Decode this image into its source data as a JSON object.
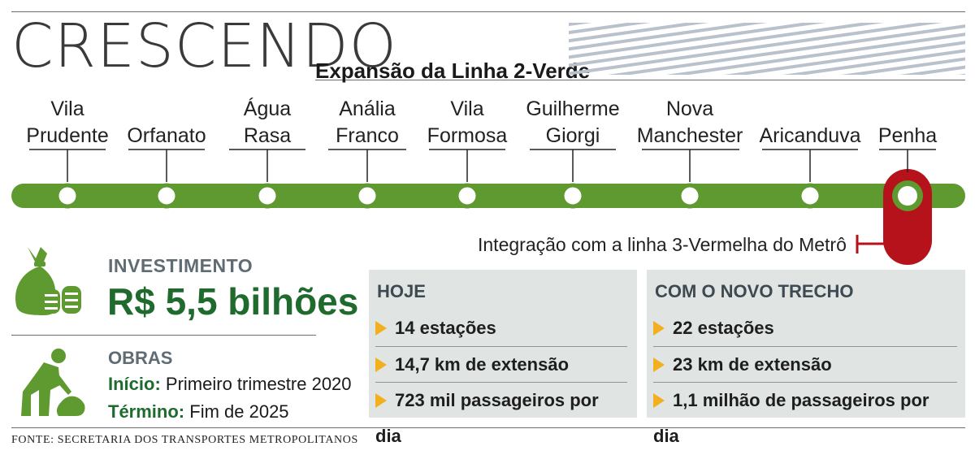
{
  "header": {
    "title": "CRESCENDO",
    "subtitle": "Expansão da Linha 2-Verde"
  },
  "stations": [
    {
      "line1": "Vila",
      "line2": "Prudente"
    },
    {
      "line1": "",
      "line2": "Orfanato"
    },
    {
      "line1": "Água",
      "line2": "Rasa"
    },
    {
      "line1": "Anália",
      "line2": "Franco"
    },
    {
      "line1": "Vila",
      "line2": "Formosa"
    },
    {
      "line1": "Guilherme",
      "line2": "Giorgi"
    },
    {
      "line1": "Nova",
      "line2": "Manchester"
    },
    {
      "line1": "",
      "line2": "Aricanduva"
    },
    {
      "line1": "",
      "line2": "Penha"
    }
  ],
  "integration_note": "Integração com a linha 3-Vermelha do Metrô",
  "investment": {
    "label": "INVESTIMENTO",
    "value": "R$ 5,5 bilhões",
    "icon": "money-bag-icon"
  },
  "works": {
    "label": "OBRAS",
    "start_label": "Início:",
    "start_value": "Primeiro trimestre 2020",
    "end_label": "Término:",
    "end_value": "Fim de 2025",
    "icon": "worker-shovel-icon"
  },
  "today": {
    "title": "HOJE",
    "items": [
      "14 estações",
      "14,7 km de extensão",
      "723 mil passageiros por dia"
    ]
  },
  "new_section": {
    "title": "COM O NOVO TRECHO",
    "items": [
      "22 estações",
      "23 km de extensão",
      "1,1 milhão de passageiros por dia"
    ]
  },
  "source": "FONTE: SECRETARIA DOS TRANSPORTES METROPOLITANOS",
  "colors": {
    "line_green": "#5e9a2f",
    "integration_red": "#b5121b",
    "bullet_yellow": "#f2b01e",
    "panel_bg": "#e0e5e3",
    "heading_green": "#1f6b2e"
  }
}
